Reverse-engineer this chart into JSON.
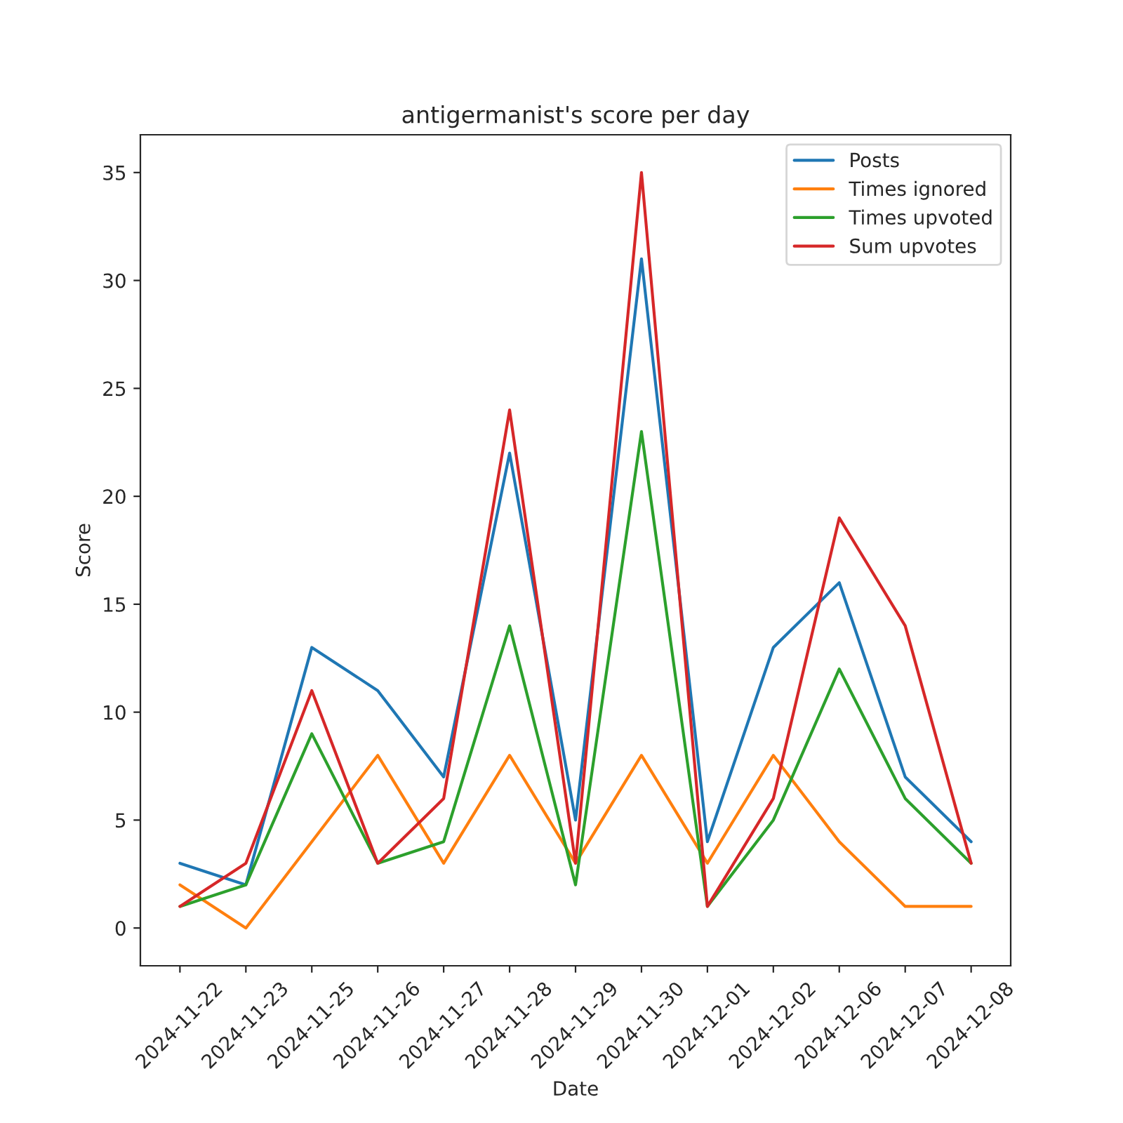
{
  "chart_data": {
    "type": "line",
    "title": "antigermanist's score per day",
    "xlabel": "Date",
    "ylabel": "Score",
    "categories": [
      "2024-11-22",
      "2024-11-23",
      "2024-11-25",
      "2024-11-26",
      "2024-11-27",
      "2024-11-28",
      "2024-11-29",
      "2024-11-30",
      "2024-12-01",
      "2024-12-02",
      "2024-12-06",
      "2024-12-07",
      "2024-12-08"
    ],
    "series": [
      {
        "name": "Posts",
        "color": "#1f77b4",
        "values": [
          3,
          2,
          13,
          11,
          7,
          22,
          5,
          31,
          4,
          13,
          16,
          7,
          4
        ]
      },
      {
        "name": "Times ignored",
        "color": "#ff7f0e",
        "values": [
          2,
          0,
          4,
          8,
          3,
          8,
          3,
          8,
          3,
          8,
          4,
          1,
          1
        ]
      },
      {
        "name": "Times upvoted",
        "color": "#2ca02c",
        "values": [
          1,
          2,
          9,
          3,
          4,
          14,
          2,
          23,
          1,
          5,
          12,
          6,
          3
        ]
      },
      {
        "name": "Sum upvotes",
        "color": "#d62728",
        "values": [
          1,
          3,
          11,
          3,
          6,
          24,
          3,
          35,
          1,
          6,
          19,
          14,
          3
        ]
      }
    ],
    "ylim": [
      -1.75,
      36.75
    ],
    "yticks": [
      0,
      5,
      10,
      15,
      20,
      25,
      30,
      35
    ],
    "legend": "top right",
    "grid": false
  }
}
